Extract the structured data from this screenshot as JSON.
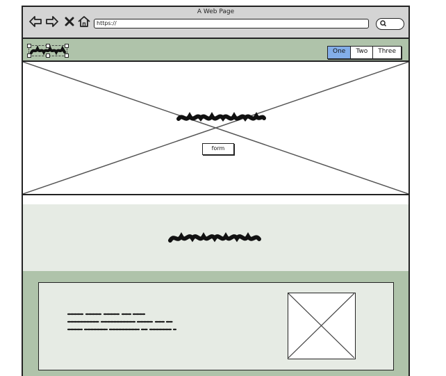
{
  "browser": {
    "title": "A Web Page",
    "url": "https://",
    "icons": [
      "back-arrow-icon",
      "forward-arrow-icon",
      "close-x-icon",
      "home-icon",
      "search-icon"
    ]
  },
  "header": {
    "logo_icon": "scribble-logo",
    "tabs": [
      {
        "label": "One",
        "active": true
      },
      {
        "label": "Two",
        "active": false
      },
      {
        "label": "Three",
        "active": false
      }
    ]
  },
  "hero": {
    "button_label": "form"
  },
  "colors": {
    "header_green": "#afc3aa",
    "light_green": "#e6ebe4",
    "active_tab_blue": "#83aee8",
    "chrome_gray": "#d4d4d4"
  }
}
